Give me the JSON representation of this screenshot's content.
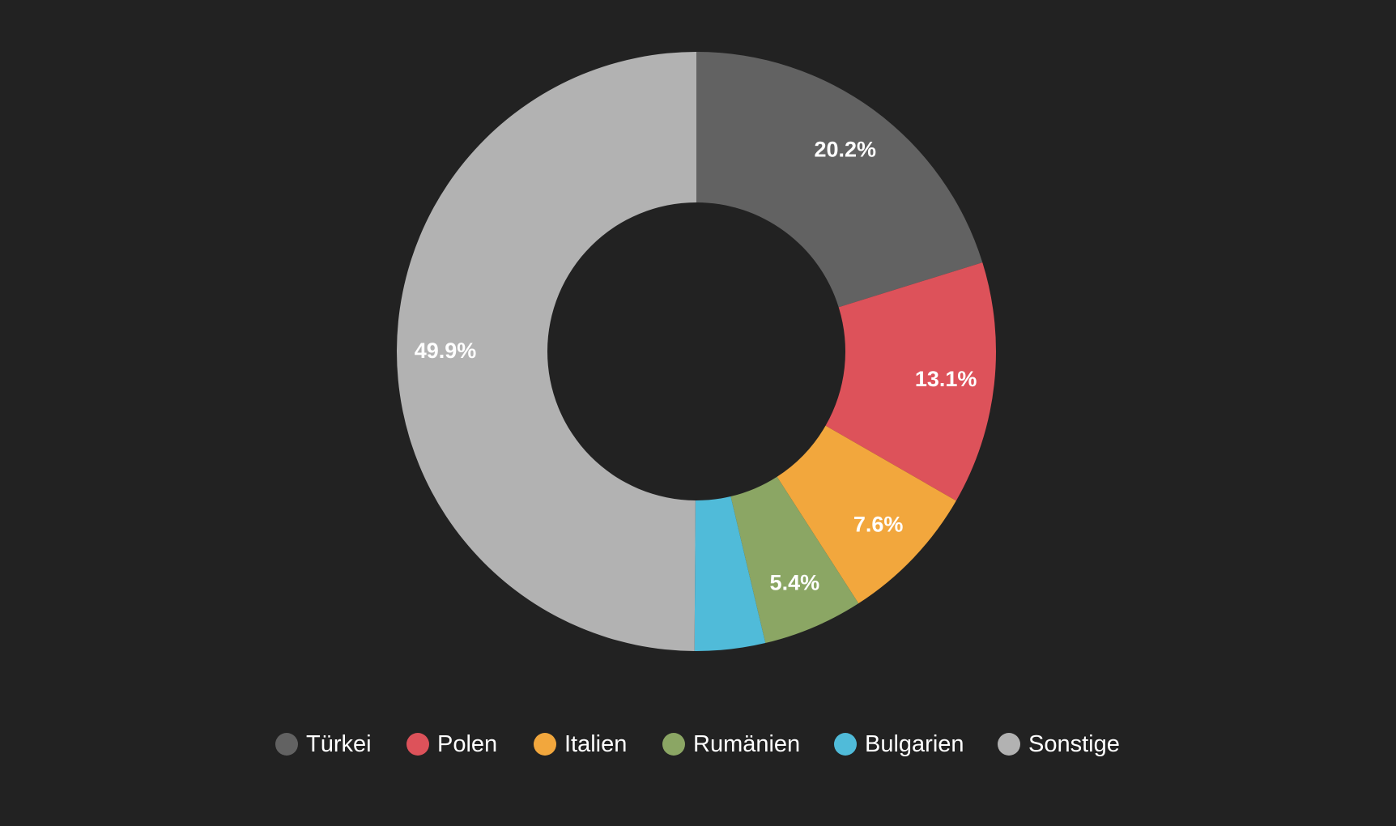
{
  "chart_data": {
    "type": "pie",
    "donut": true,
    "title": "",
    "legend_position": "bottom",
    "labels_shown": [
      "20.2%",
      "13.1%",
      "7.6%",
      "5.4%",
      "",
      "49.9%"
    ],
    "slices": [
      {
        "name": "Türkei",
        "value": 20.2,
        "color": "#626262"
      },
      {
        "name": "Polen",
        "value": 13.1,
        "color": "#dd525a"
      },
      {
        "name": "Italien",
        "value": 7.6,
        "color": "#f2a73d"
      },
      {
        "name": "Rumänien",
        "value": 5.4,
        "color": "#8ba664"
      },
      {
        "name": "Bulgarien",
        "value": 3.8,
        "color": "#50bbd9"
      },
      {
        "name": "Sonstige",
        "value": 49.9,
        "color": "#b2b2b2"
      }
    ]
  }
}
